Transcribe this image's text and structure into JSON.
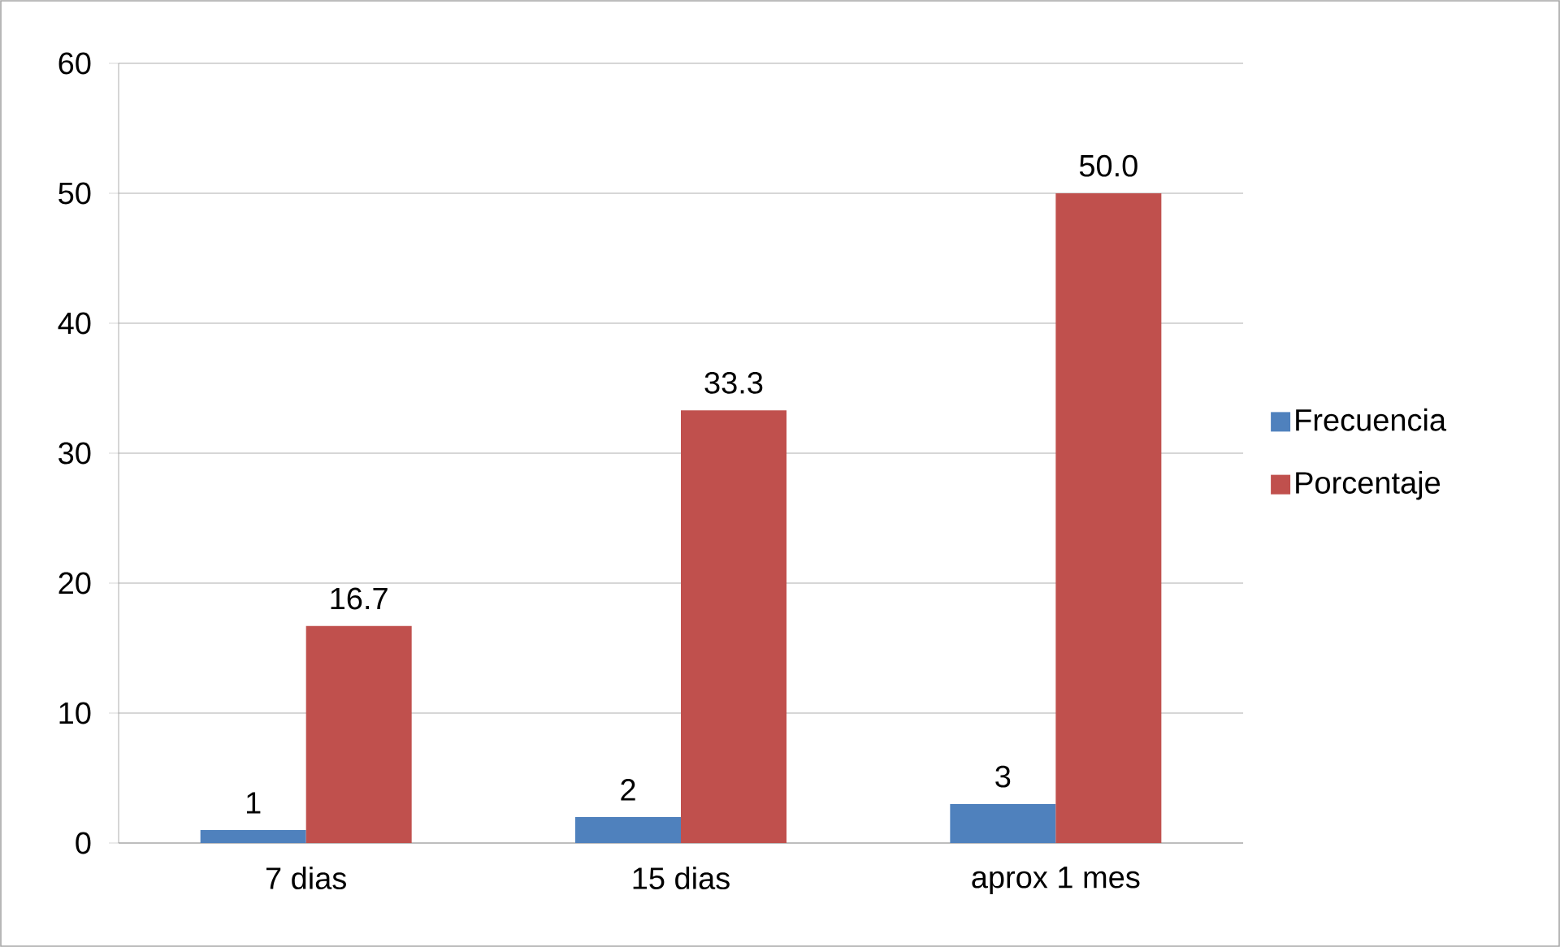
{
  "chart_data": {
    "type": "bar",
    "categories": [
      "7 dias",
      "15 dias",
      "aprox 1 mes"
    ],
    "series": [
      {
        "name": "Frecuencia",
        "color": "#4f81bd",
        "values": [
          1,
          2,
          3
        ],
        "value_labels": [
          "1",
          "2",
          "3"
        ]
      },
      {
        "name": "Porcentaje",
        "color": "#c0504d",
        "values": [
          16.7,
          33.3,
          50.0
        ],
        "value_labels": [
          "16.7",
          "33.3",
          "50.0"
        ]
      }
    ],
    "ylim": [
      0,
      60
    ],
    "yticks": [
      0,
      10,
      20,
      30,
      40,
      50,
      60
    ],
    "grid": "y",
    "legend": "right"
  }
}
